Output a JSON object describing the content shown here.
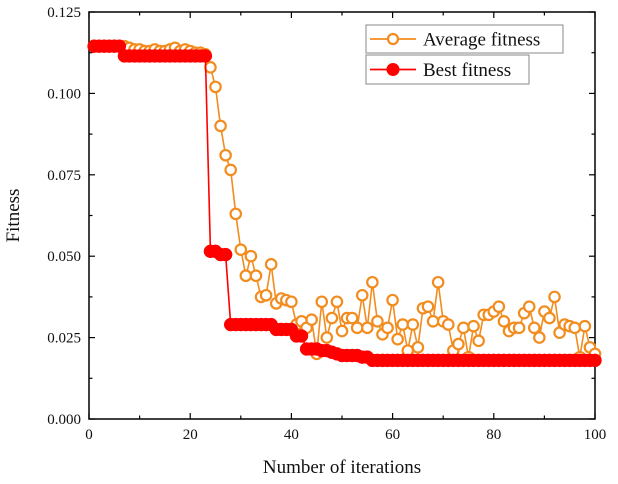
{
  "chart_data": {
    "type": "line",
    "title": "",
    "xlabel": "Number of iterations",
    "ylabel": "Fitness",
    "xlim": [
      0,
      100
    ],
    "ylim": [
      0.0,
      0.125
    ],
    "xticks": [
      0,
      20,
      40,
      60,
      80,
      100
    ],
    "xtick_labels": [
      "0",
      "20",
      "40",
      "60",
      "80",
      "100"
    ],
    "yticks": [
      0.0,
      0.025,
      0.05,
      0.075,
      0.1,
      0.125
    ],
    "ytick_labels": [
      "0.000",
      "0.025",
      "0.050",
      "0.075",
      "0.100",
      "0.125"
    ],
    "grid": false,
    "legend_position": "top-right",
    "x": [
      1,
      2,
      3,
      4,
      5,
      6,
      7,
      8,
      9,
      10,
      11,
      12,
      13,
      14,
      15,
      16,
      17,
      18,
      19,
      20,
      21,
      22,
      23,
      24,
      25,
      26,
      27,
      28,
      29,
      30,
      31,
      32,
      33,
      34,
      35,
      36,
      37,
      38,
      39,
      40,
      41,
      42,
      43,
      44,
      45,
      46,
      47,
      48,
      49,
      50,
      51,
      52,
      53,
      54,
      55,
      56,
      57,
      58,
      59,
      60,
      61,
      62,
      63,
      64,
      65,
      66,
      67,
      68,
      69,
      70,
      71,
      72,
      73,
      74,
      75,
      76,
      77,
      78,
      79,
      80,
      81,
      82,
      83,
      84,
      85,
      86,
      87,
      88,
      89,
      90,
      91,
      92,
      93,
      94,
      95,
      96,
      97,
      98,
      99,
      100
    ],
    "series": [
      {
        "name": "Average fitness",
        "color": "#F28C1E",
        "marker": "open-circle",
        "values": [
          0.1145,
          0.1145,
          0.1145,
          0.1145,
          0.1145,
          0.1145,
          0.1145,
          0.114,
          0.1135,
          0.1135,
          0.113,
          0.113,
          0.1135,
          0.113,
          0.113,
          0.1135,
          0.114,
          0.113,
          0.1135,
          0.113,
          0.1125,
          0.1125,
          0.112,
          0.108,
          0.102,
          0.09,
          0.081,
          0.0765,
          0.063,
          0.052,
          0.044,
          0.05,
          0.044,
          0.0375,
          0.038,
          0.0475,
          0.0355,
          0.037,
          0.0365,
          0.036,
          0.029,
          0.03,
          0.028,
          0.0305,
          0.02,
          0.036,
          0.025,
          0.031,
          0.036,
          0.027,
          0.031,
          0.031,
          0.028,
          0.038,
          0.028,
          0.042,
          0.03,
          0.026,
          0.028,
          0.0365,
          0.0245,
          0.029,
          0.021,
          0.029,
          0.022,
          0.034,
          0.0345,
          0.03,
          0.042,
          0.03,
          0.029,
          0.021,
          0.023,
          0.028,
          0.019,
          0.0285,
          0.024,
          0.032,
          0.032,
          0.033,
          0.0345,
          0.03,
          0.027,
          0.028,
          0.028,
          0.0325,
          0.0345,
          0.028,
          0.025,
          0.033,
          0.031,
          0.0375,
          0.0265,
          0.029,
          0.0285,
          0.028,
          0.019,
          0.0285,
          0.022,
          0.02
        ]
      },
      {
        "name": "Best fitness",
        "color": "#FF0000",
        "marker": "filled-circle",
        "values": [
          0.1145,
          0.1145,
          0.1145,
          0.1145,
          0.1145,
          0.1145,
          0.1115,
          0.1115,
          0.1115,
          0.1115,
          0.1115,
          0.1115,
          0.1115,
          0.1115,
          0.1115,
          0.1115,
          0.1115,
          0.1115,
          0.1115,
          0.1115,
          0.1115,
          0.1115,
          0.1115,
          0.0515,
          0.0515,
          0.0505,
          0.0505,
          0.029,
          0.029,
          0.029,
          0.029,
          0.029,
          0.029,
          0.029,
          0.029,
          0.029,
          0.0275,
          0.0275,
          0.0275,
          0.0275,
          0.0255,
          0.0255,
          0.0215,
          0.0215,
          0.0215,
          0.021,
          0.021,
          0.0205,
          0.02,
          0.0195,
          0.0195,
          0.0195,
          0.0195,
          0.019,
          0.019,
          0.018,
          0.018,
          0.018,
          0.018,
          0.018,
          0.018,
          0.018,
          0.018,
          0.018,
          0.018,
          0.018,
          0.018,
          0.018,
          0.018,
          0.018,
          0.018,
          0.018,
          0.018,
          0.018,
          0.018,
          0.018,
          0.018,
          0.018,
          0.018,
          0.018,
          0.018,
          0.018,
          0.018,
          0.018,
          0.018,
          0.018,
          0.018,
          0.018,
          0.018,
          0.018,
          0.018,
          0.018,
          0.018,
          0.018,
          0.018,
          0.018,
          0.018,
          0.018,
          0.018,
          0.018
        ]
      }
    ]
  }
}
